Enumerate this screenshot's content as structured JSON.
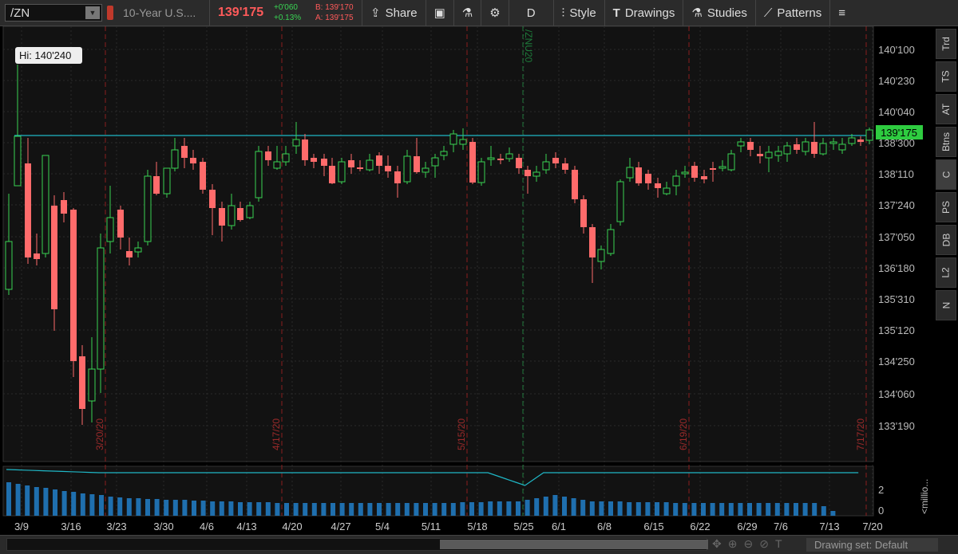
{
  "toolbar": {
    "symbol": "/ZN",
    "description": "10-Year U.S....",
    "last_price": "139'175",
    "net_change": "+0'060",
    "pct_change": "+0.13%",
    "bid": "B: 139'170",
    "ask": "A: 139'175",
    "share": "Share",
    "timeframe": "D",
    "style": "Style",
    "drawings": "Drawings",
    "studies": "Studies",
    "patterns": "Patterns"
  },
  "chart": {
    "hi_label": "Hi: 140'240",
    "price_badge": "139'175",
    "contract_label": "/ZNU20",
    "price_ticks": [
      "140'100",
      "140'230",
      "140'040",
      "138'300",
      "138'110",
      "137'240",
      "137'050",
      "136'180",
      "135'310",
      "135'120",
      "134'250",
      "134'060",
      "133'190"
    ],
    "date_ticks": [
      "3/9",
      "3/16",
      "3/23",
      "3/30",
      "4/6",
      "4/13",
      "4/20",
      "4/27",
      "5/4",
      "5/11",
      "5/18",
      "5/25",
      "6/1",
      "6/8",
      "6/15",
      "6/22",
      "6/29",
      "7/6",
      "7/13",
      "7/20"
    ],
    "expiry_labels": [
      "3/20/20",
      "4/17/20",
      "5/15/20",
      "6/19/20",
      "7/17/20"
    ],
    "volume_ticks": [
      "2",
      "0"
    ],
    "volume_unit": "<millio...",
    "colors": {
      "up": "#39d353",
      "down": "#ff6b6b",
      "line": "#1fb7c6",
      "volume": "#1f6fae",
      "expiry": "#8a1f1f"
    }
  },
  "chart_data": {
    "type": "candlestick",
    "series_ohlc_hint": "daily OHLC, prices in 32nds shown on axis",
    "highest": "140'240"
  },
  "right_tabs": [
    "Trd",
    "TS",
    "AT",
    "Btns",
    "C",
    "PS",
    "DB",
    "L2",
    "N"
  ],
  "bottom": {
    "drawing_set": "Drawing set: Default"
  }
}
